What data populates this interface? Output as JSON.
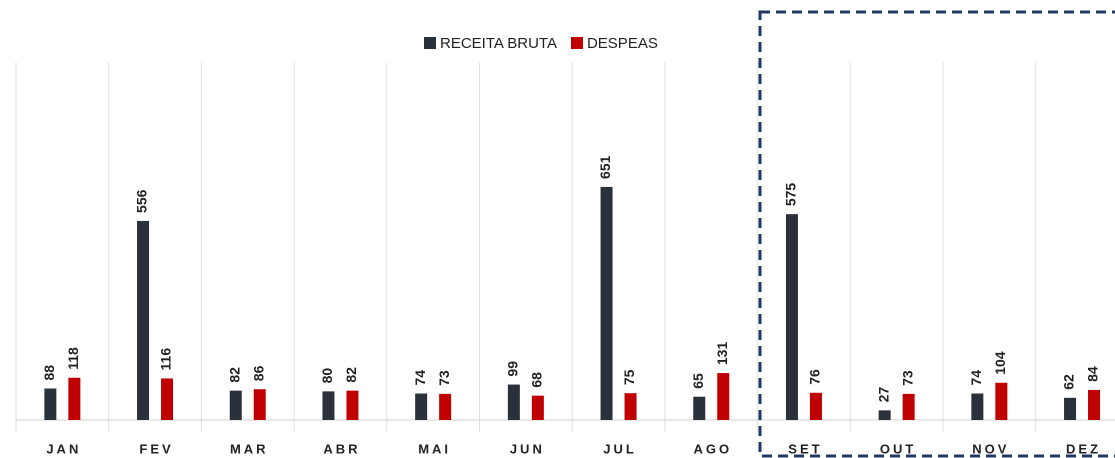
{
  "chart_data": {
    "type": "bar",
    "categories": [
      "JAN",
      "FEV",
      "MAR",
      "ABR",
      "MAI",
      "JUN",
      "JUL",
      "AGO",
      "SET",
      "OUT",
      "NOV",
      "DEZ"
    ],
    "series": [
      {
        "name": "RECEITA BRUTA",
        "color": "#2b313b",
        "values": [
          88,
          556,
          82,
          80,
          74,
          99,
          651,
          65,
          575,
          27,
          74,
          62
        ]
      },
      {
        "name": "DESPEAS",
        "color": "#c00000",
        "values": [
          118,
          116,
          86,
          82,
          73,
          68,
          75,
          131,
          76,
          73,
          104,
          84
        ]
      }
    ]
  }
}
